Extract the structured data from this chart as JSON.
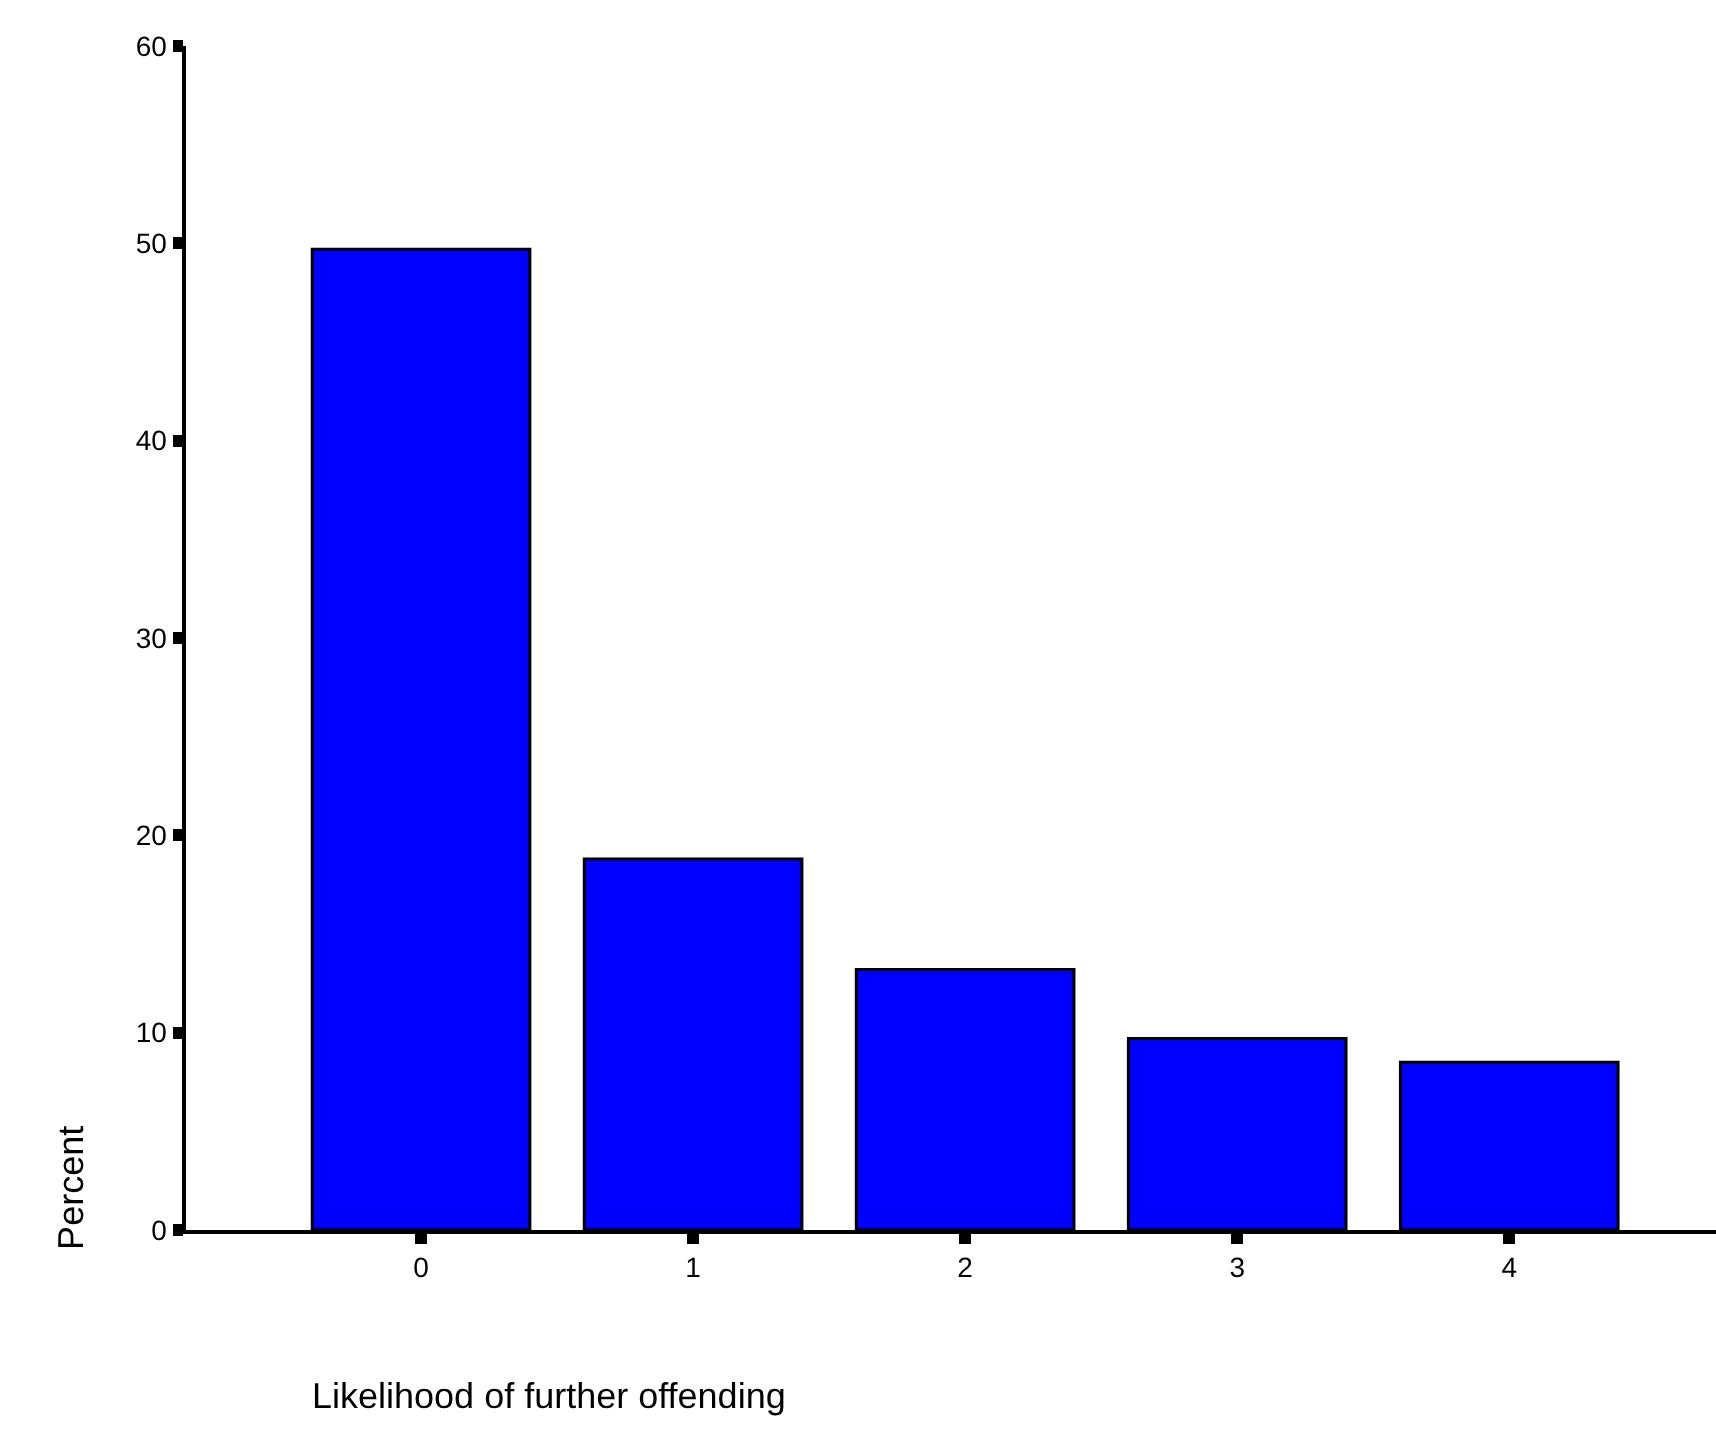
{
  "chart_data": {
    "type": "bar",
    "xlabel": "Likelihood of further offending",
    "ylabel": "Percent",
    "categories": [
      "0",
      "1",
      "2",
      "3",
      "4"
    ],
    "values": [
      49.7,
      18.8,
      13.2,
      9.7,
      8.5
    ],
    "color": "#0000ff",
    "ylim": [
      0,
      60
    ],
    "yticks": [
      0,
      10,
      20,
      30,
      40,
      50,
      60
    ],
    "grid": false
  }
}
